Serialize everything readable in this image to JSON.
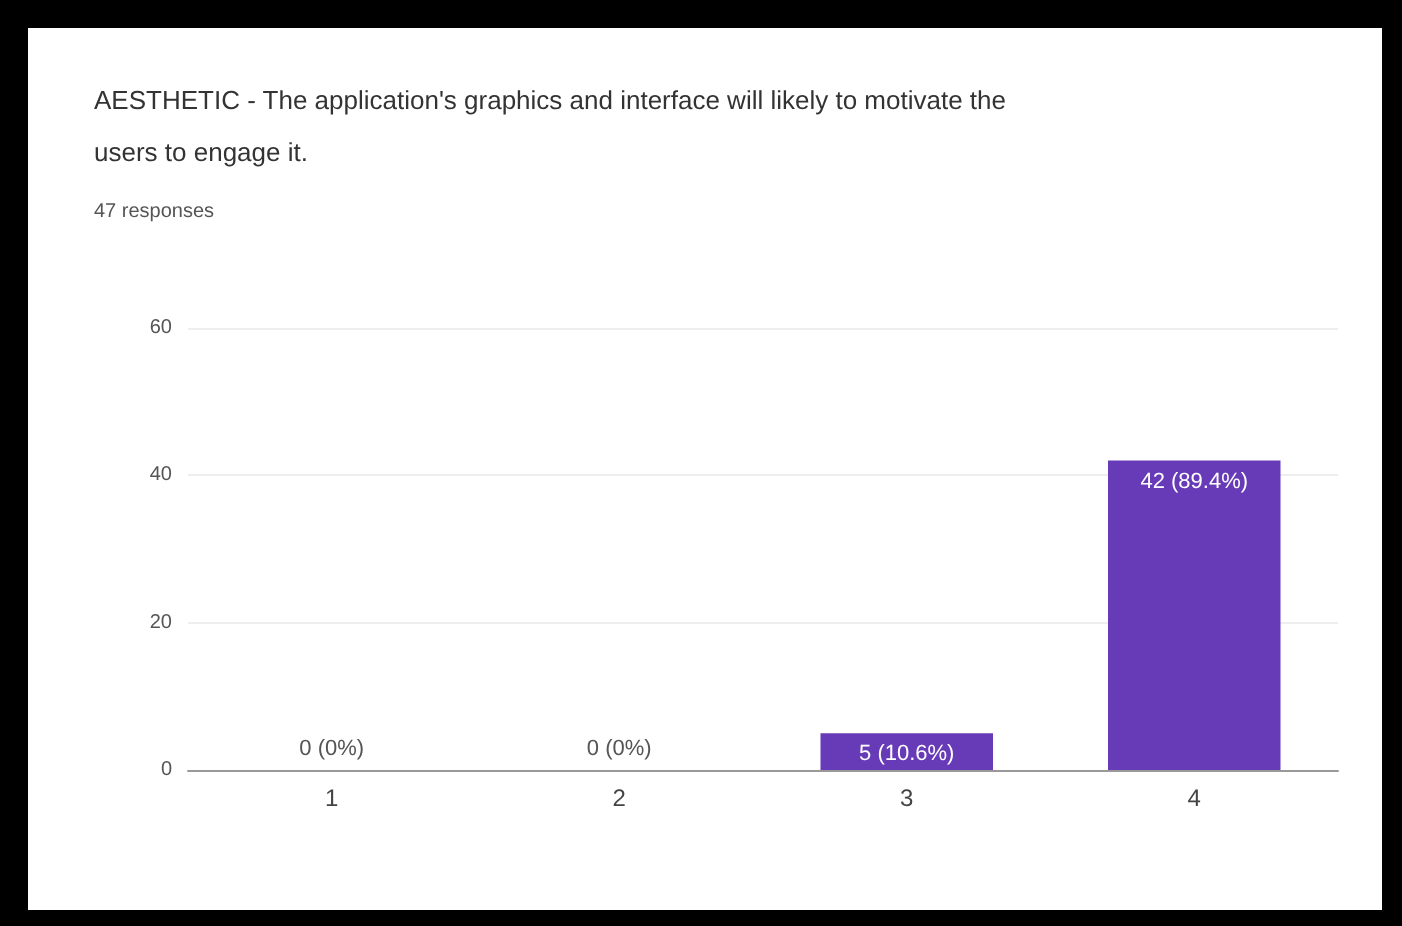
{
  "chart_data": {
    "type": "bar",
    "title": "AESTHETIC - The application's graphics and interface will likely to motivate the users to engage it.",
    "subtitle": "47 responses",
    "categories": [
      "1",
      "2",
      "3",
      "4"
    ],
    "values": [
      0,
      0,
      5,
      42
    ],
    "value_labels": [
      "0 (0%)",
      "0 (0%)",
      "5 (10.6%)",
      "42 (89.4%)"
    ],
    "color": "#673ab7",
    "ylim": [
      0,
      60
    ],
    "yticks": [
      0,
      20,
      40,
      60
    ],
    "grid": "y"
  }
}
